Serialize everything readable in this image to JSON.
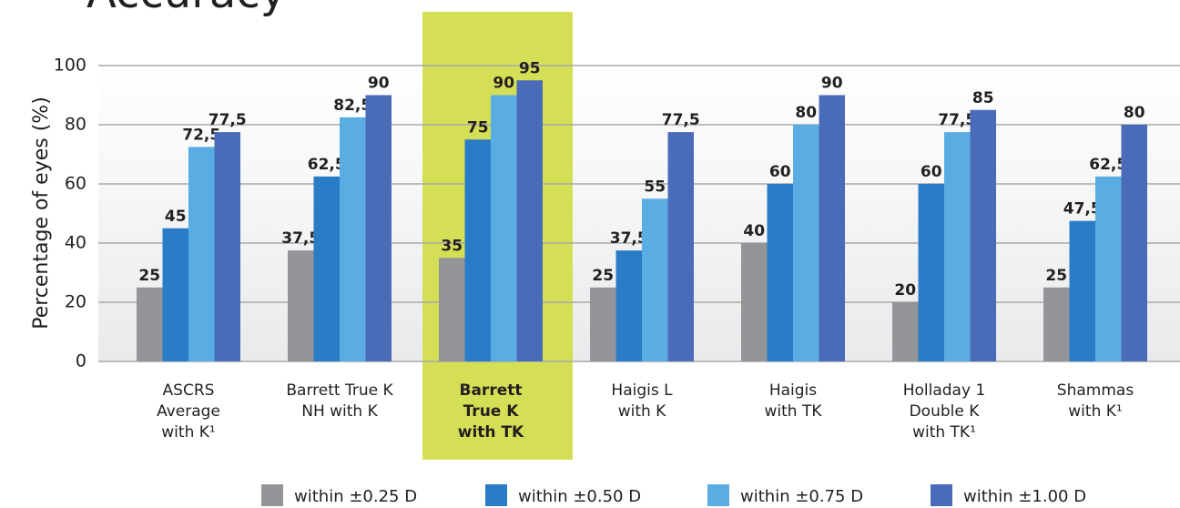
{
  "chart_data": {
    "type": "bar",
    "title": "Accuracy",
    "ylabel": "Percentage of eyes (%)",
    "categories": [
      [
        "ASCRS",
        "Average",
        "with K¹"
      ],
      [
        "Barrett True K",
        "NH with K"
      ],
      [
        "Barrett",
        "True K",
        "with TK"
      ],
      [
        "Haigis L",
        "with K"
      ],
      [
        "Haigis",
        "with TK"
      ],
      [
        "Holladay 1",
        "Double K",
        "with TK¹"
      ],
      [
        "Shammas",
        "with K¹"
      ]
    ],
    "highlight": 2,
    "series": [
      {
        "name": "within ±0.25 D",
        "color": "#939598",
        "values": [
          25,
          37.5,
          35,
          25,
          40,
          20,
          25
        ],
        "value_labels": [
          "25",
          "37,5",
          "35",
          "25",
          "40",
          "20",
          "25"
        ]
      },
      {
        "name": "within ±0.50 D",
        "color": "#2a7cc7",
        "values": [
          45,
          62.5,
          75,
          37.5,
          60,
          60,
          47.5
        ],
        "value_labels": [
          "45",
          "62,5",
          "75",
          "37,5",
          "60",
          "60",
          "47,5"
        ]
      },
      {
        "name": "within ±0.75 D",
        "color": "#5aade2",
        "values": [
          72.5,
          82.5,
          90,
          55,
          80,
          77.5,
          62.5
        ],
        "value_labels": [
          "72,5",
          "82,5",
          "90",
          "55",
          "80",
          "77,5",
          "62,5"
        ]
      },
      {
        "name": "within ±1.00 D",
        "color": "#4a6cb8",
        "values": [
          77.5,
          90,
          95,
          77.5,
          90,
          85,
          80
        ],
        "value_labels": [
          "77,5",
          "90",
          "95",
          "77,5",
          "90",
          "85",
          "80"
        ]
      }
    ],
    "ylim": [
      0,
      100
    ],
    "yticks": [
      0,
      20,
      40,
      60,
      80,
      100
    ],
    "grid": true
  }
}
